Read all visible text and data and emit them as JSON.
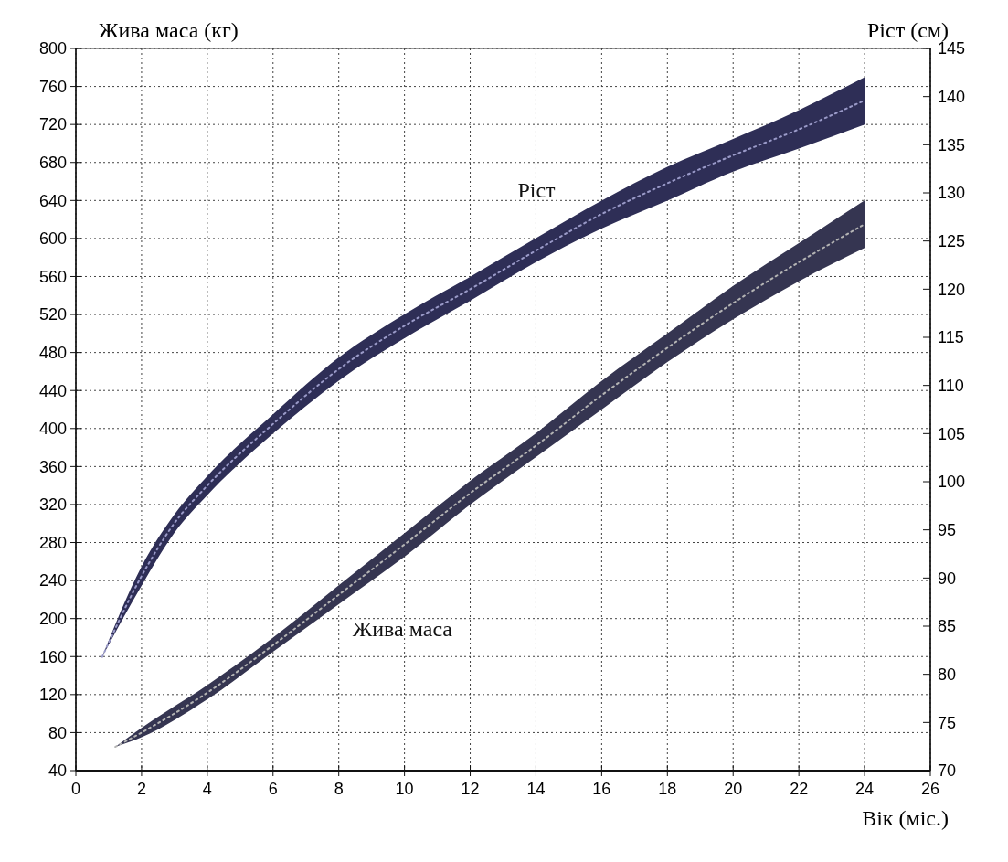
{
  "chart_data": {
    "type": "line",
    "xlabel": "Вік (міс.)",
    "ylabel": "Жива маса (кг)",
    "y2label": "Ріст (см)",
    "xlim": [
      0,
      26
    ],
    "xticks": [
      0,
      2,
      4,
      6,
      8,
      10,
      12,
      14,
      16,
      18,
      20,
      22,
      24,
      26
    ],
    "ylim": [
      40,
      800
    ],
    "yticks": [
      40,
      80,
      120,
      160,
      200,
      240,
      280,
      320,
      360,
      400,
      440,
      480,
      520,
      560,
      600,
      640,
      680,
      720,
      760,
      800
    ],
    "y2lim": [
      70,
      145
    ],
    "y2ticks": [
      70,
      75,
      80,
      85,
      90,
      95,
      100,
      105,
      110,
      115,
      120,
      125,
      130,
      135,
      140,
      145
    ],
    "grid": true,
    "line_style": "dotted",
    "series": [
      {
        "name": "Ріст",
        "axis": "y2",
        "color": "#9a9ac8",
        "x": [
          0.8,
          2,
          3,
          4,
          6,
          8,
          10,
          12,
          14,
          16,
          18,
          20,
          22,
          24
        ],
        "values": [
          81.8,
          90.2,
          95.7,
          99.6,
          106,
          111.7,
          116.2,
          120,
          124,
          127.8,
          131,
          133.9,
          136.6,
          139.6
        ],
        "lower": [
          81.8,
          89.2,
          94.7,
          98.6,
          105,
          110.5,
          114.9,
          118.8,
          122.8,
          126.3,
          129.2,
          132.2,
          134.6,
          137.1
        ],
        "upper": [
          81.8,
          91.2,
          96.6,
          100.6,
          107,
          112.9,
          117.4,
          121.3,
          125.3,
          129.2,
          132.7,
          135.6,
          138.6,
          142
        ]
      },
      {
        "name": "Жива маса",
        "color": "#b4b4b4",
        "x": [
          1.2,
          2,
          4,
          6,
          8,
          10,
          12,
          14,
          16,
          18,
          20,
          22,
          24
        ],
        "values": [
          65,
          80,
          122,
          172,
          225,
          278,
          332,
          382,
          435,
          485,
          532,
          575,
          615
        ],
        "lower": [
          65,
          75,
          115,
          165,
          215,
          265,
          320,
          370,
          420,
          470,
          515,
          555,
          590
        ],
        "upper": [
          65,
          85,
          130,
          180,
          235,
          290,
          345,
          395,
          450,
          500,
          550,
          595,
          640
        ]
      }
    ]
  }
}
